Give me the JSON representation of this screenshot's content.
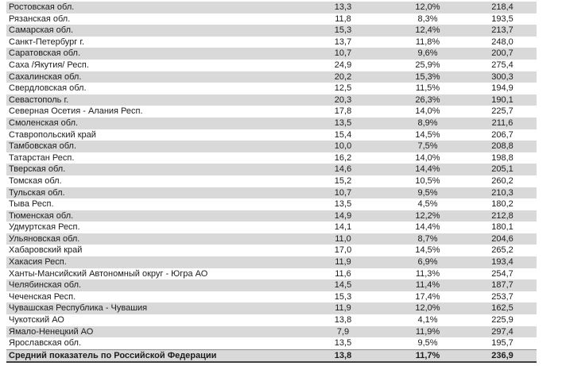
{
  "colors": {
    "stripe_gray": "#d9d9d9",
    "text": "#1c1c1c",
    "summary_top_border": "#8c8c8c",
    "summary_bottom_border": "#404040"
  },
  "table": {
    "rows": [
      {
        "name": "Ростовская обл.",
        "v1": "13,3",
        "v2": "12,0%",
        "v3": "218,4"
      },
      {
        "name": "Рязанская обл.",
        "v1": "11,8",
        "v2": "8,3%",
        "v3": "193,5"
      },
      {
        "name": "Самарская обл.",
        "v1": "15,3",
        "v2": "12,4%",
        "v3": "213,7"
      },
      {
        "name": "Санкт-Петербург г.",
        "v1": "13,7",
        "v2": "11,8%",
        "v3": "248,0"
      },
      {
        "name": "Саратовская обл.",
        "v1": "10,7",
        "v2": "9,6%",
        "v3": "200,7"
      },
      {
        "name": "Саха /Якутия/ Респ.",
        "v1": "24,9",
        "v2": "25,9%",
        "v3": "275,4"
      },
      {
        "name": "Сахалинская обл.",
        "v1": "20,2",
        "v2": "15,3%",
        "v3": "300,3"
      },
      {
        "name": "Свердловская обл.",
        "v1": "12,5",
        "v2": "11,5%",
        "v3": "194,9"
      },
      {
        "name": "Севастополь г.",
        "v1": "20,3",
        "v2": "26,3%",
        "v3": "190,1"
      },
      {
        "name": "Северная Осетия - Алания Респ.",
        "v1": "17,8",
        "v2": "14,0%",
        "v3": "225,7"
      },
      {
        "name": "Смоленская обл.",
        "v1": "13,5",
        "v2": "8,9%",
        "v3": "211,6"
      },
      {
        "name": "Ставропольский край",
        "v1": "15,4",
        "v2": "14,5%",
        "v3": "206,7"
      },
      {
        "name": "Тамбовская обл.",
        "v1": "10,0",
        "v2": "7,5%",
        "v3": "208,8"
      },
      {
        "name": "Татарстан Респ.",
        "v1": "16,2",
        "v2": "14,0%",
        "v3": "198,8"
      },
      {
        "name": "Тверская обл.",
        "v1": "14,6",
        "v2": "14,4%",
        "v3": "205,1"
      },
      {
        "name": "Томская обл.",
        "v1": "15,2",
        "v2": "10,5%",
        "v3": "260,2"
      },
      {
        "name": "Тульская обл.",
        "v1": "10,7",
        "v2": "9,5%",
        "v3": "210,3"
      },
      {
        "name": "Тыва Респ.",
        "v1": "13,5",
        "v2": "4,5%",
        "v3": "180,2"
      },
      {
        "name": "Тюменская обл.",
        "v1": "14,9",
        "v2": "12,2%",
        "v3": "212,8"
      },
      {
        "name": "Удмуртская Респ.",
        "v1": "14,1",
        "v2": "14,4%",
        "v3": "180,1"
      },
      {
        "name": "Ульяновская обл.",
        "v1": "11,0",
        "v2": "8,7%",
        "v3": "204,6"
      },
      {
        "name": "Хабаровский край",
        "v1": "17,0",
        "v2": "14,5%",
        "v3": "265,2"
      },
      {
        "name": "Хакасия Респ.",
        "v1": "11,9",
        "v2": "6,9%",
        "v3": "193,4"
      },
      {
        "name": "Ханты-Мансийский Автономный округ - Югра АО",
        "v1": "11,6",
        "v2": "11,3%",
        "v3": "254,7"
      },
      {
        "name": "Челябинская обл.",
        "v1": "14,5",
        "v2": "11,4%",
        "v3": "187,7"
      },
      {
        "name": "Чеченская Респ.",
        "v1": "15,3",
        "v2": "17,4%",
        "v3": "253,7"
      },
      {
        "name": "Чувашская Республика - Чувашия",
        "v1": "11,9",
        "v2": "12,0%",
        "v3": "162,5"
      },
      {
        "name": "Чукотский АО",
        "v1": "13,8",
        "v2": "4,1%",
        "v3": "225,9"
      },
      {
        "name": "Ямало-Ненецкий АО",
        "v1": "7,9",
        "v2": "11,9%",
        "v3": "297,4"
      },
      {
        "name": "Ярославская обл.",
        "v1": "13,5",
        "v2": "9,5%",
        "v3": "195,7"
      }
    ],
    "summary": {
      "name": "Средний показатель по Российской Федерации",
      "v1": "13,8",
      "v2": "11,7%",
      "v3": "236,9"
    }
  }
}
